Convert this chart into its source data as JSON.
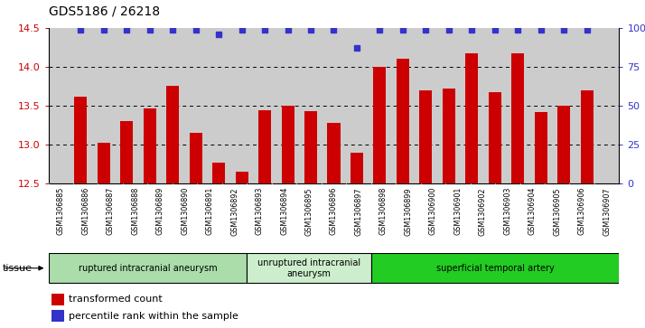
{
  "title": "GDS5186 / 26218",
  "samples": [
    "GSM1306885",
    "GSM1306886",
    "GSM1306887",
    "GSM1306888",
    "GSM1306889",
    "GSM1306890",
    "GSM1306891",
    "GSM1306892",
    "GSM1306893",
    "GSM1306894",
    "GSM1306895",
    "GSM1306896",
    "GSM1306897",
    "GSM1306898",
    "GSM1306899",
    "GSM1306900",
    "GSM1306901",
    "GSM1306902",
    "GSM1306903",
    "GSM1306904",
    "GSM1306905",
    "GSM1306906",
    "GSM1306907"
  ],
  "bar_values": [
    13.62,
    13.02,
    13.3,
    13.47,
    13.76,
    13.15,
    12.77,
    12.65,
    13.44,
    13.5,
    13.43,
    13.28,
    12.9,
    14.0,
    14.1,
    13.7,
    13.72,
    14.17,
    13.68,
    14.17,
    13.42,
    13.5,
    13.7
  ],
  "percentile_values": [
    99,
    99,
    99,
    99,
    99,
    99,
    96,
    99,
    99,
    99,
    99,
    99,
    87,
    99,
    99,
    99,
    99,
    99,
    99,
    99,
    99,
    99,
    99
  ],
  "ylim_left": [
    12.5,
    14.5
  ],
  "ylim_right": [
    0,
    100
  ],
  "yticks_left": [
    12.5,
    13.0,
    13.5,
    14.0,
    14.5
  ],
  "yticks_right": [
    0,
    25,
    50,
    75,
    100
  ],
  "ytick_labels_right": [
    "0",
    "25",
    "50",
    "75",
    "100%"
  ],
  "bar_color": "#cc0000",
  "dot_color": "#3333cc",
  "bg_color": "#cccccc",
  "tissue_groups": [
    {
      "label": "ruptured intracranial aneurysm",
      "start": 0,
      "end": 8,
      "color": "#aaddaa"
    },
    {
      "label": "unruptured intracranial\naneurysm",
      "start": 8,
      "end": 13,
      "color": "#cceecc"
    },
    {
      "label": "superficial temporal artery",
      "start": 13,
      "end": 23,
      "color": "#22cc22"
    }
  ],
  "legend_red_label": "transformed count",
  "legend_blue_label": "percentile rank within the sample",
  "tissue_label": "tissue",
  "title_fontsize": 10
}
